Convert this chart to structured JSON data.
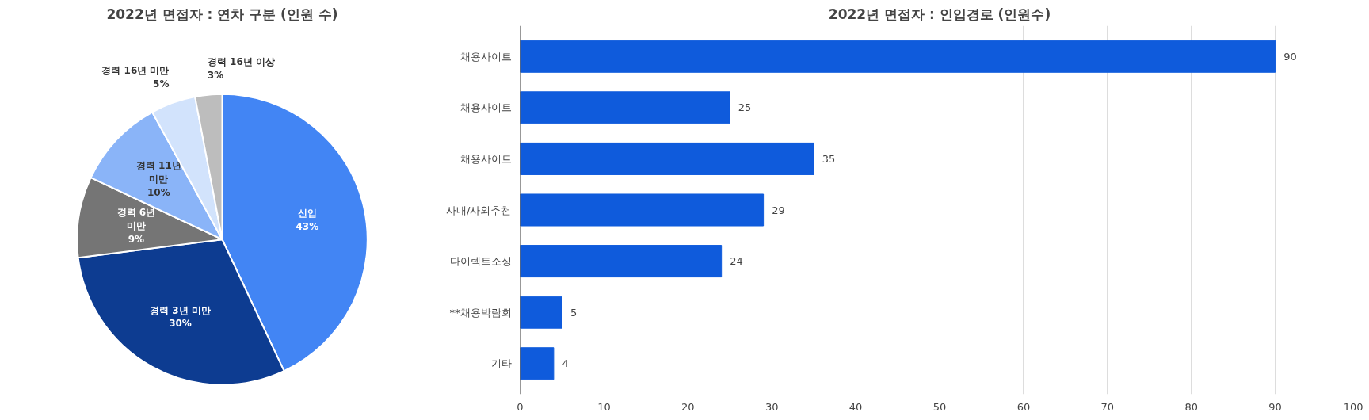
{
  "chart_data": [
    {
      "type": "pie",
      "title": "2022년 면접자 : 연차 구분 (인원 수)",
      "categories": [
        "신입",
        "경력 3년 미만",
        "경력 6년 미만",
        "경력 11년 미만",
        "경력 16년 미만",
        "경력 16년 이상"
      ],
      "values": [
        43,
        30,
        9,
        10,
        5,
        3
      ],
      "colors": [
        "#4285f4",
        "#0d3c91",
        "#757575",
        "#8ab4f8",
        "#d2e3fc",
        "#bdbdbd"
      ],
      "value_labels": [
        "43%",
        "30%",
        "9%",
        "10%",
        "5%",
        "3%"
      ]
    },
    {
      "type": "bar",
      "orientation": "horizontal",
      "title": "2022년 면접자 : 인입경로 (인원수)",
      "categories": [
        "채용사이트",
        "채용사이트",
        "채용사이트",
        "사내/사외추천",
        "다이렉트소싱",
        "**채용박람회",
        "기타"
      ],
      "values": [
        90,
        25,
        35,
        29,
        24,
        5,
        4
      ],
      "color": "#0f5bdc",
      "xlim": [
        0,
        100
      ],
      "xticks": [
        0,
        10,
        20,
        30,
        40,
        50,
        60,
        70,
        80,
        90,
        100
      ],
      "grid": "x",
      "data_labels": true
    }
  ]
}
